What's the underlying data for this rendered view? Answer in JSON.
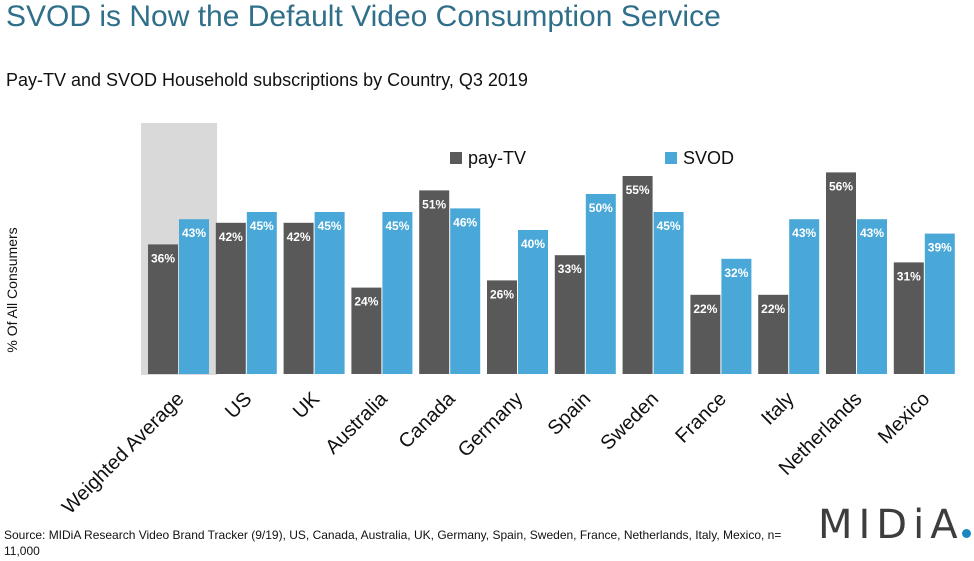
{
  "title": "SVOD is Now the Default Video Consumption Service",
  "subtitle": "Pay-TV and SVOD Household subscriptions by Country, Q3 2019",
  "source": "Source: MIDiA Research Video Brand Tracker (9/19), US, Canada, Australia, UK, Germany, Spain, Sweden, France, Netherlands, Italy, Mexico, n= 11,000",
  "logo": "MIDiA",
  "colors": {
    "payTV": "#595959",
    "svod": "#4aa8d8",
    "highlight": "#d9d9d9"
  },
  "chart_data": {
    "type": "bar",
    "title": "Pay-TV and SVOD Household subscriptions by Country, Q3 2019",
    "ylabel": "% Of All Consumers",
    "xlabel": "",
    "categories": [
      "Weighted Average",
      "US",
      "UK",
      "Australia",
      "Canada",
      "Germany",
      "Spain",
      "Sweden",
      "France",
      "Italy",
      "Netherlands",
      "Mexico"
    ],
    "series": [
      {
        "name": "pay-TV",
        "values": [
          36,
          42,
          42,
          24,
          51,
          26,
          33,
          55,
          22,
          22,
          56,
          31
        ]
      },
      {
        "name": "SVOD",
        "values": [
          43,
          45,
          45,
          45,
          46,
          40,
          50,
          45,
          32,
          43,
          43,
          39
        ]
      }
    ],
    "value_suffix": "%",
    "ylim": [
      0,
      60
    ],
    "grid": false,
    "legend_position": "top-right",
    "highlighted_category": "Weighted Average"
  }
}
